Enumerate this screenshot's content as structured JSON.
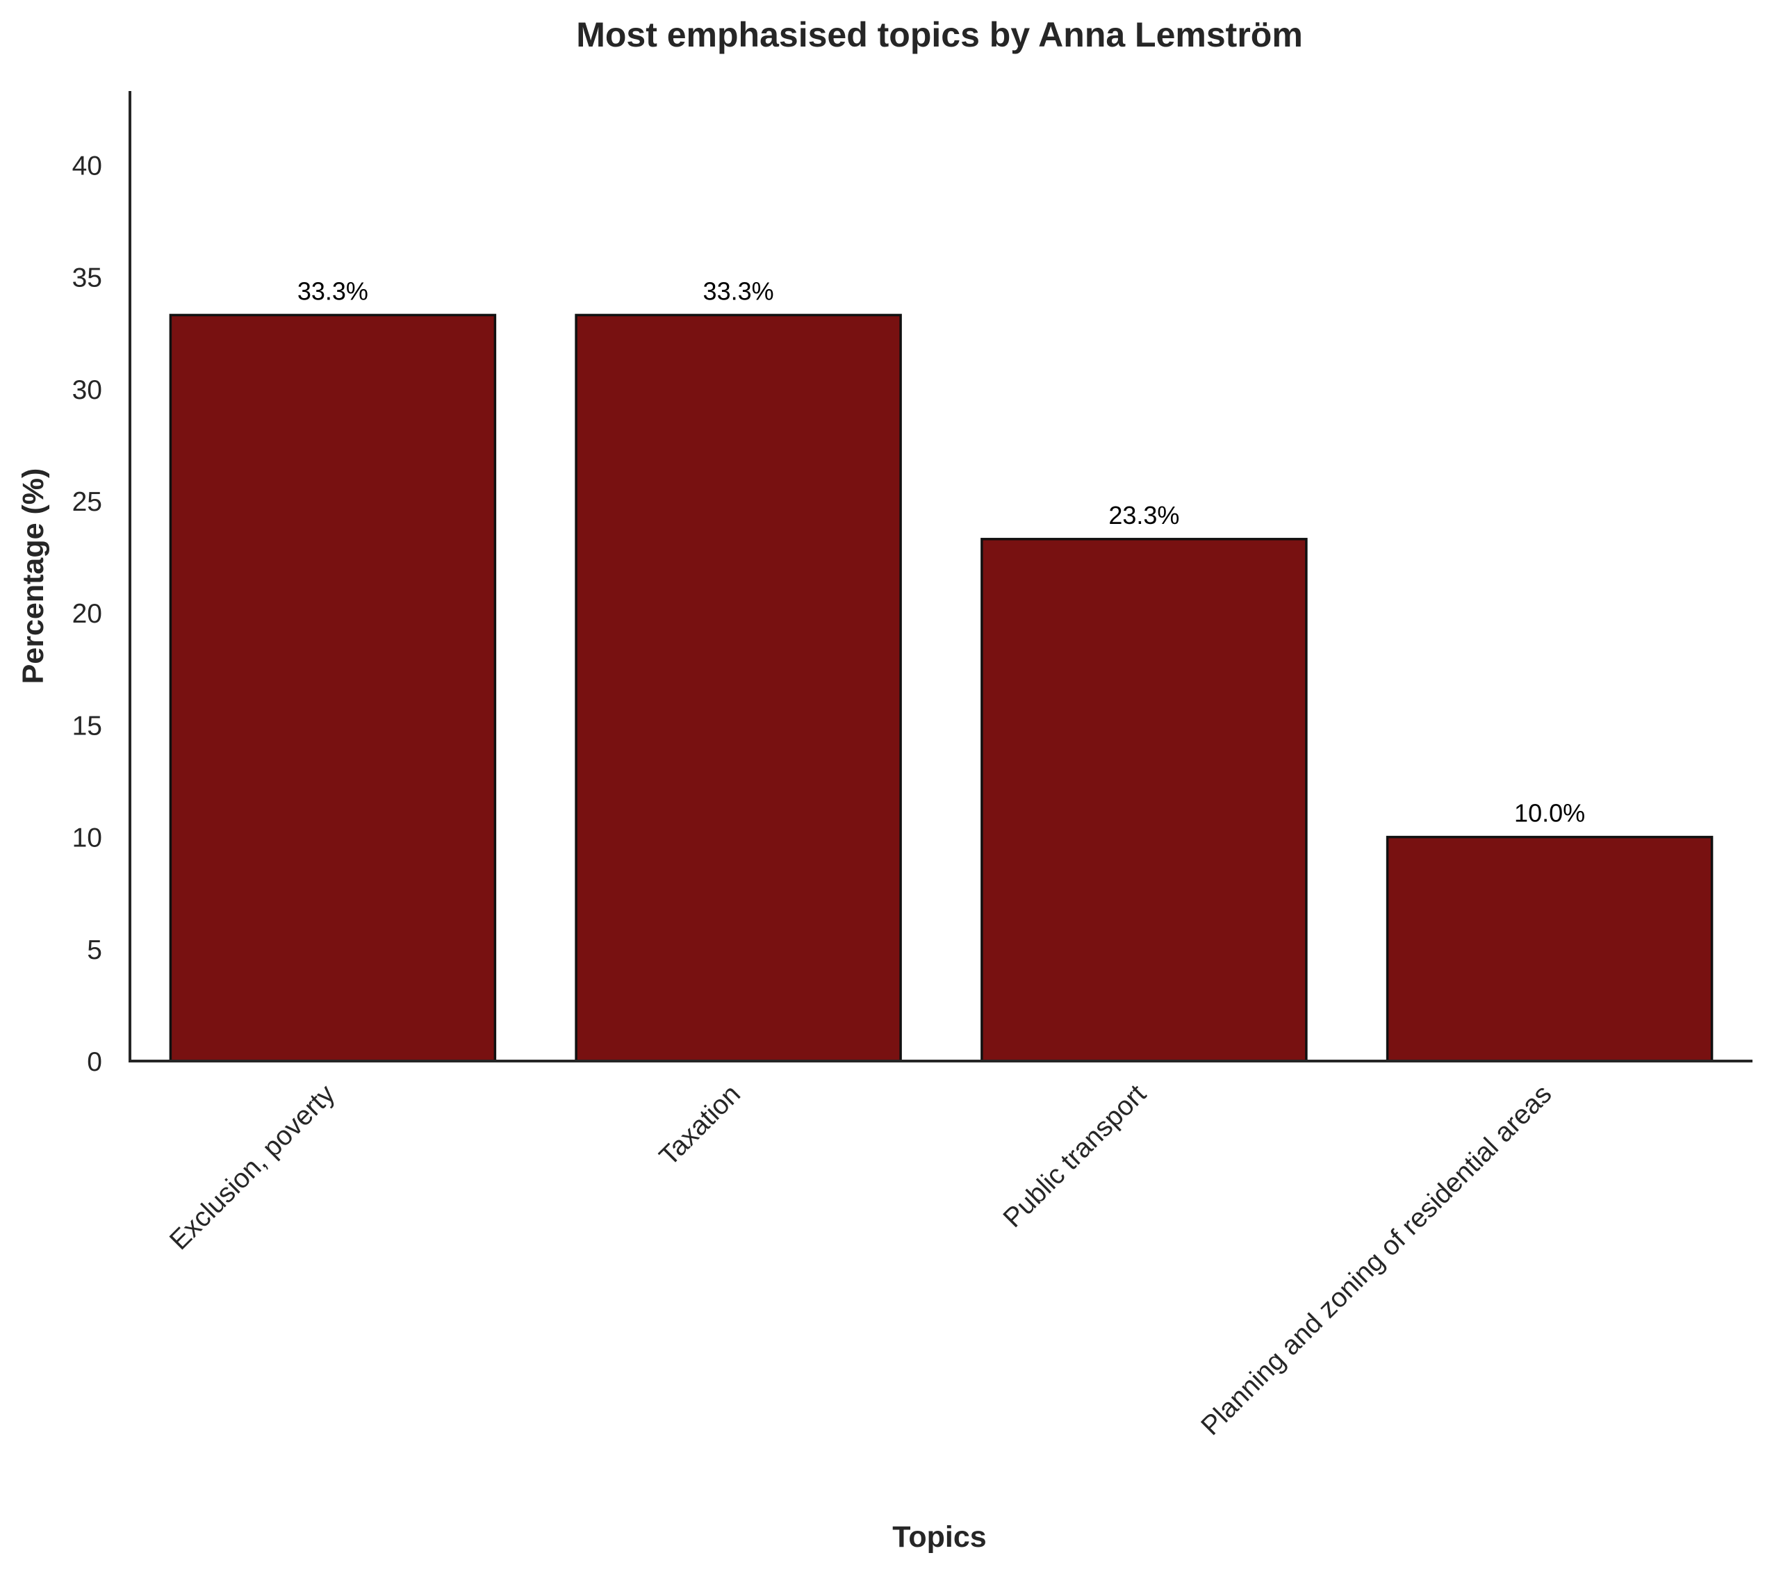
{
  "chart_data": {
    "type": "bar",
    "title": "Most emphasised topics by Anna Lemström",
    "xlabel": "Topics",
    "ylabel": "Percentage (%)",
    "categories": [
      "Exclusion, poverty",
      "Taxation",
      "Public transport",
      "Planning and zoning of residential areas"
    ],
    "values": [
      33.3,
      33.3,
      23.3,
      10.0
    ],
    "data_labels": [
      "33.3%",
      "33.3%",
      "23.3%",
      "10.0%"
    ],
    "ylim": [
      0,
      43.3
    ],
    "yticks": [
      0,
      5,
      10,
      15,
      20,
      25,
      30,
      35,
      40
    ],
    "grid": false,
    "legend": "none",
    "colors": {
      "bar_fill": "#781111",
      "bar_edge": "#111111"
    }
  }
}
